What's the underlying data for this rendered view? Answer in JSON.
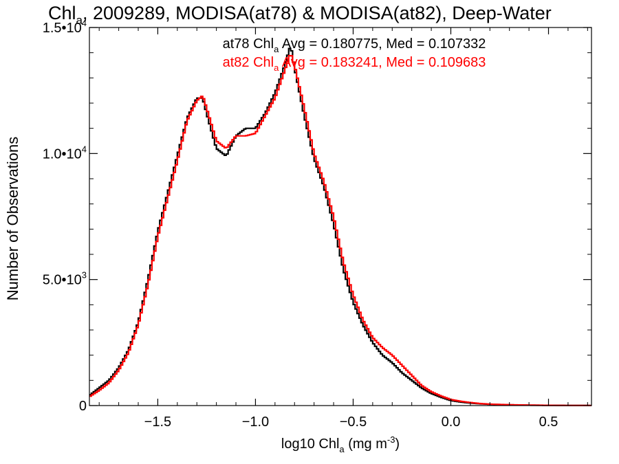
{
  "chart_data": {
    "type": "line",
    "title": "Chl",
    "title_sub": "a",
    "title_rest": ", 2009289, MODISA(at78) & MODISA(at82), Deep-Water",
    "xlabel": "log10 Chl",
    "xlabel_sub": "a",
    "xlabel_rest": " (mg m",
    "xlabel_sup": "-3",
    "xlabel_end": ")",
    "ylabel": "Number of Observations",
    "xlim": [
      -1.85,
      0.72
    ],
    "ylim": [
      0,
      15000
    ],
    "x_ticks": [
      -1.5,
      -1.0,
      -0.5,
      0.0,
      0.5
    ],
    "x_tick_labels": [
      "−1.5",
      "−1.0",
      "−0.5",
      "0.0",
      "0.5"
    ],
    "y_ticks": [
      0,
      5000,
      10000,
      15000
    ],
    "y_tick_labels": [
      {
        "base": "0",
        "exp": ""
      },
      {
        "base": "5.0•10",
        "exp": "3"
      },
      {
        "base": "1.0•10",
        "exp": "4"
      },
      {
        "base": "1.5•10",
        "exp": "4"
      }
    ],
    "grid": false,
    "legend_position": "top-center",
    "annotations": [
      {
        "prefix": "at78 Chl",
        "sub": "a",
        "rest": " Avg = 0.180775, Med = 0.107332",
        "color": "#000000"
      },
      {
        "prefix": "at82 Chl",
        "sub": "a",
        "rest": " Avg = 0.183241, Med = 0.109683",
        "color": "#ff0000"
      }
    ],
    "series": [
      {
        "color": "#000000",
        "x": [
          -1.85,
          -1.8,
          -1.75,
          -1.7,
          -1.65,
          -1.6,
          -1.55,
          -1.5,
          -1.45,
          -1.4,
          -1.35,
          -1.3,
          -1.27,
          -1.25,
          -1.2,
          -1.15,
          -1.1,
          -1.05,
          -1.0,
          -0.95,
          -0.9,
          -0.85,
          -0.82,
          -0.8,
          -0.75,
          -0.7,
          -0.65,
          -0.6,
          -0.55,
          -0.5,
          -0.45,
          -0.4,
          -0.35,
          -0.3,
          -0.25,
          -0.2,
          -0.15,
          -0.1,
          -0.05,
          0.0,
          0.05,
          0.1,
          0.15,
          0.2,
          0.3,
          0.4,
          0.5,
          0.6,
          0.72
        ],
        "y": [
          400,
          700,
          1000,
          1500,
          2200,
          3300,
          5000,
          6900,
          8400,
          9900,
          11400,
          12200,
          12200,
          11600,
          10200,
          9900,
          10700,
          11000,
          11000,
          11600,
          12400,
          13500,
          14300,
          13400,
          11500,
          9800,
          8700,
          7200,
          5400,
          4100,
          3200,
          2500,
          2000,
          1700,
          1300,
          1000,
          700,
          480,
          330,
          200,
          140,
          100,
          70,
          50,
          30,
          15,
          10,
          5,
          2
        ]
      },
      {
        "color": "#ff0000",
        "x": [
          -1.85,
          -1.8,
          -1.75,
          -1.7,
          -1.65,
          -1.6,
          -1.55,
          -1.5,
          -1.45,
          -1.4,
          -1.35,
          -1.3,
          -1.27,
          -1.25,
          -1.2,
          -1.15,
          -1.1,
          -1.05,
          -1.0,
          -0.95,
          -0.9,
          -0.85,
          -0.82,
          -0.8,
          -0.75,
          -0.7,
          -0.65,
          -0.6,
          -0.55,
          -0.5,
          -0.45,
          -0.4,
          -0.35,
          -0.3,
          -0.25,
          -0.2,
          -0.15,
          -0.1,
          -0.05,
          0.0,
          0.05,
          0.1,
          0.15,
          0.2,
          0.3,
          0.4,
          0.5,
          0.6,
          0.72
        ],
        "y": [
          350,
          600,
          900,
          1400,
          2100,
          3200,
          4800,
          6700,
          8200,
          9700,
          11300,
          12100,
          12300,
          11800,
          10500,
          10200,
          10700,
          10700,
          10800,
          11500,
          12200,
          13300,
          14000,
          13500,
          11800,
          10000,
          8900,
          7500,
          5700,
          4400,
          3400,
          2700,
          2300,
          2000,
          1600,
          1200,
          800,
          550,
          380,
          240,
          170,
          120,
          80,
          55,
          32,
          18,
          10,
          5,
          2
        ]
      }
    ]
  }
}
